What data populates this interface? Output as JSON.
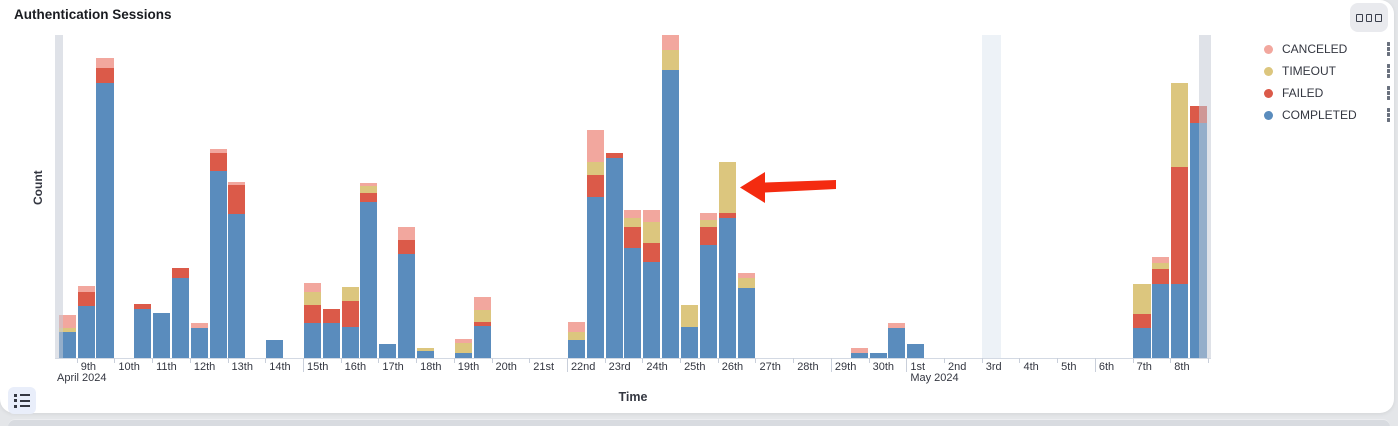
{
  "panel": {
    "title": "Authentication Sessions",
    "options_button": "panel options",
    "legend_toggle_button": "toggle legend"
  },
  "legend": {
    "position": "right",
    "items": [
      {
        "label": "CANCELED",
        "color": "#F2A79E"
      },
      {
        "label": "TIMEOUT",
        "color": "#DCC67E"
      },
      {
        "label": "FAILED",
        "color": "#DB5A49"
      },
      {
        "label": "COMPLETED",
        "color": "#5A8CBD"
      }
    ]
  },
  "chart_data": {
    "type": "bar",
    "stacked": true,
    "title": "Authentication Sessions",
    "xlabel": "Time",
    "ylabel": "Count",
    "grid": false,
    "x_axis": {
      "bucket_interval": "12h",
      "range": "2024-04-08 to 2024-05-09",
      "tick_labels": [
        "9th",
        "10th",
        "11th",
        "12th",
        "13th",
        "14th",
        "15th",
        "16th",
        "17th",
        "18th",
        "19th",
        "20th",
        "21st",
        "22nd",
        "23rd",
        "24th",
        "25th",
        "26th",
        "27th",
        "28th",
        "29th",
        "30th",
        "1st",
        "2nd",
        "3rd",
        "4th",
        "5th",
        "6th",
        "7th",
        "8th"
      ],
      "month_labels": [
        {
          "text": "April 2024",
          "at_day_index": 0
        },
        {
          "text": "May 2024",
          "at_day_index": 23
        }
      ],
      "major_tick_day_indices": [
        7,
        14,
        21,
        23,
        28
      ]
    },
    "y_axis": {
      "label": "Count",
      "tick_labels_visible": false,
      "note": "no numeric ticks shown; values below are relative heights (max bar = 323)",
      "max_relative": 323
    },
    "series_order": [
      "COMPLETED",
      "FAILED",
      "TIMEOUT",
      "CANCELED"
    ],
    "series_colors": {
      "COMPLETED": "#5A8CBD",
      "FAILED": "#DB5A49",
      "TIMEOUT": "#DCC67E",
      "CANCELED": "#F2A79E"
    },
    "bars": [
      {
        "slot": 1,
        "time": "2024-04-08 12:00",
        "values": {
          "COMPLETED": 26,
          "FAILED": 0,
          "TIMEOUT": 4,
          "CANCELED": 13
        }
      },
      {
        "slot": 2,
        "time": "2024-04-09 00:00",
        "values": {
          "COMPLETED": 52,
          "FAILED": 14,
          "TIMEOUT": 0,
          "CANCELED": 6
        }
      },
      {
        "slot": 3,
        "time": "2024-04-09 12:00",
        "values": {
          "COMPLETED": 275,
          "FAILED": 15,
          "TIMEOUT": 0,
          "CANCELED": 10
        }
      },
      {
        "slot": 5,
        "time": "2024-04-10 12:00",
        "values": {
          "COMPLETED": 49,
          "FAILED": 5,
          "TIMEOUT": 0,
          "CANCELED": 0
        }
      },
      {
        "slot": 6,
        "time": "2024-04-11 00:00",
        "values": {
          "COMPLETED": 45,
          "FAILED": 0,
          "TIMEOUT": 0,
          "CANCELED": 0
        }
      },
      {
        "slot": 7,
        "time": "2024-04-11 12:00",
        "values": {
          "COMPLETED": 80,
          "FAILED": 10,
          "TIMEOUT": 0,
          "CANCELED": 0
        }
      },
      {
        "slot": 8,
        "time": "2024-04-12 00:00",
        "values": {
          "COMPLETED": 30,
          "FAILED": 0,
          "TIMEOUT": 0,
          "CANCELED": 5
        }
      },
      {
        "slot": 9,
        "time": "2024-04-12 12:00",
        "values": {
          "COMPLETED": 187,
          "FAILED": 18,
          "TIMEOUT": 0,
          "CANCELED": 4
        }
      },
      {
        "slot": 10,
        "time": "2024-04-13 00:00",
        "values": {
          "COMPLETED": 144,
          "FAILED": 29,
          "TIMEOUT": 0,
          "CANCELED": 3
        }
      },
      {
        "slot": 12,
        "time": "2024-04-14 00:00",
        "values": {
          "COMPLETED": 18,
          "FAILED": 0,
          "TIMEOUT": 0,
          "CANCELED": 0
        }
      },
      {
        "slot": 14,
        "time": "2024-04-15 00:00",
        "values": {
          "COMPLETED": 35,
          "FAILED": 18,
          "TIMEOUT": 13,
          "CANCELED": 9
        }
      },
      {
        "slot": 15,
        "time": "2024-04-15 12:00",
        "values": {
          "COMPLETED": 35,
          "FAILED": 14,
          "TIMEOUT": 0,
          "CANCELED": 0
        }
      },
      {
        "slot": 16,
        "time": "2024-04-16 00:00",
        "values": {
          "COMPLETED": 31,
          "FAILED": 26,
          "TIMEOUT": 14,
          "CANCELED": 0
        }
      },
      {
        "slot": 17,
        "time": "2024-04-16 12:00",
        "values": {
          "COMPLETED": 156,
          "FAILED": 9,
          "TIMEOUT": 7,
          "CANCELED": 3
        }
      },
      {
        "slot": 18,
        "time": "2024-04-17 00:00",
        "values": {
          "COMPLETED": 14,
          "FAILED": 0,
          "TIMEOUT": 0,
          "CANCELED": 0
        }
      },
      {
        "slot": 19,
        "time": "2024-04-17 12:00",
        "values": {
          "COMPLETED": 104,
          "FAILED": 14,
          "TIMEOUT": 0,
          "CANCELED": 13
        }
      },
      {
        "slot": 20,
        "time": "2024-04-18 00:00",
        "values": {
          "COMPLETED": 7,
          "FAILED": 0,
          "TIMEOUT": 3,
          "CANCELED": 0
        }
      },
      {
        "slot": 22,
        "time": "2024-04-19 00:00",
        "values": {
          "COMPLETED": 5,
          "FAILED": 0,
          "TIMEOUT": 10,
          "CANCELED": 4
        }
      },
      {
        "slot": 23,
        "time": "2024-04-19 12:00",
        "values": {
          "COMPLETED": 32,
          "FAILED": 4,
          "TIMEOUT": 12,
          "CANCELED": 13
        }
      },
      {
        "slot": 28,
        "time": "2024-04-22 00:00",
        "values": {
          "COMPLETED": 18,
          "FAILED": 0,
          "TIMEOUT": 8,
          "CANCELED": 10
        }
      },
      {
        "slot": 29,
        "time": "2024-04-22 12:00",
        "values": {
          "COMPLETED": 161,
          "FAILED": 22,
          "TIMEOUT": 13,
          "CANCELED": 32
        }
      },
      {
        "slot": 30,
        "time": "2024-04-23 00:00",
        "values": {
          "COMPLETED": 200,
          "FAILED": 5,
          "TIMEOUT": 0,
          "CANCELED": 0
        }
      },
      {
        "slot": 31,
        "time": "2024-04-23 12:00",
        "values": {
          "COMPLETED": 110,
          "FAILED": 21,
          "TIMEOUT": 9,
          "CANCELED": 8
        }
      },
      {
        "slot": 32,
        "time": "2024-04-24 00:00",
        "values": {
          "COMPLETED": 96,
          "FAILED": 19,
          "TIMEOUT": 21,
          "CANCELED": 12
        }
      },
      {
        "slot": 33,
        "time": "2024-04-24 12:00",
        "values": {
          "COMPLETED": 288,
          "FAILED": 0,
          "TIMEOUT": 20,
          "CANCELED": 15
        }
      },
      {
        "slot": 34,
        "time": "2024-04-25 00:00",
        "values": {
          "COMPLETED": 31,
          "FAILED": 0,
          "TIMEOUT": 22,
          "CANCELED": 0
        }
      },
      {
        "slot": 35,
        "time": "2024-04-25 12:00",
        "values": {
          "COMPLETED": 113,
          "FAILED": 18,
          "TIMEOUT": 7,
          "CANCELED": 7
        }
      },
      {
        "slot": 36,
        "time": "2024-04-26 00:00",
        "values": {
          "COMPLETED": 140,
          "FAILED": 5,
          "TIMEOUT": 51,
          "CANCELED": 0
        }
      },
      {
        "slot": 37,
        "time": "2024-04-26 12:00",
        "values": {
          "COMPLETED": 70,
          "FAILED": 0,
          "TIMEOUT": 10,
          "CANCELED": 5
        }
      },
      {
        "slot": 43,
        "time": "2024-04-29 12:00",
        "values": {
          "COMPLETED": 5,
          "FAILED": 0,
          "TIMEOUT": 0,
          "CANCELED": 5
        }
      },
      {
        "slot": 44,
        "time": "2024-04-30 00:00",
        "values": {
          "COMPLETED": 5,
          "FAILED": 0,
          "TIMEOUT": 0,
          "CANCELED": 0
        }
      },
      {
        "slot": 45,
        "time": "2024-04-30 12:00",
        "values": {
          "COMPLETED": 30,
          "FAILED": 0,
          "TIMEOUT": 0,
          "CANCELED": 5
        }
      },
      {
        "slot": 46,
        "time": "2024-05-01 00:00",
        "values": {
          "COMPLETED": 14,
          "FAILED": 0,
          "TIMEOUT": 0,
          "CANCELED": 0
        }
      },
      {
        "slot": 58,
        "time": "2024-05-07 00:00",
        "values": {
          "COMPLETED": 30,
          "FAILED": 14,
          "TIMEOUT": 30,
          "CANCELED": 0
        }
      },
      {
        "slot": 59,
        "time": "2024-05-07 12:00",
        "values": {
          "COMPLETED": 74,
          "FAILED": 15,
          "TIMEOUT": 6,
          "CANCELED": 6
        }
      },
      {
        "slot": 60,
        "time": "2024-05-08 00:00",
        "values": {
          "COMPLETED": 74,
          "FAILED": 117,
          "TIMEOUT": 84,
          "CANCELED": 0
        }
      },
      {
        "slot": 61,
        "time": "2024-05-08 12:00",
        "values": {
          "COMPLETED": 235,
          "FAILED": 17,
          "TIMEOUT": 0,
          "CANCELED": 0
        }
      }
    ],
    "highlight_bands": [
      {
        "kind": "partial-bucket-left",
        "slot_from": 0.85,
        "slot_to": 1.27,
        "color": "rgba(197,203,213,0.55)"
      },
      {
        "kind": "empty-highlight",
        "slot_from": 50,
        "slot_to": 51,
        "color": "rgba(222,232,241,0.55)"
      },
      {
        "kind": "partial-bucket-right",
        "slot_from": 61.5,
        "slot_to": 62.2,
        "color": "rgba(197,203,213,0.55)"
      }
    ],
    "annotation_arrow": {
      "color": "#F42B10",
      "direction": "left",
      "points_at_slot": 36,
      "points_at": "2024-04-26 00:00 bar (large TIMEOUT segment)"
    }
  }
}
